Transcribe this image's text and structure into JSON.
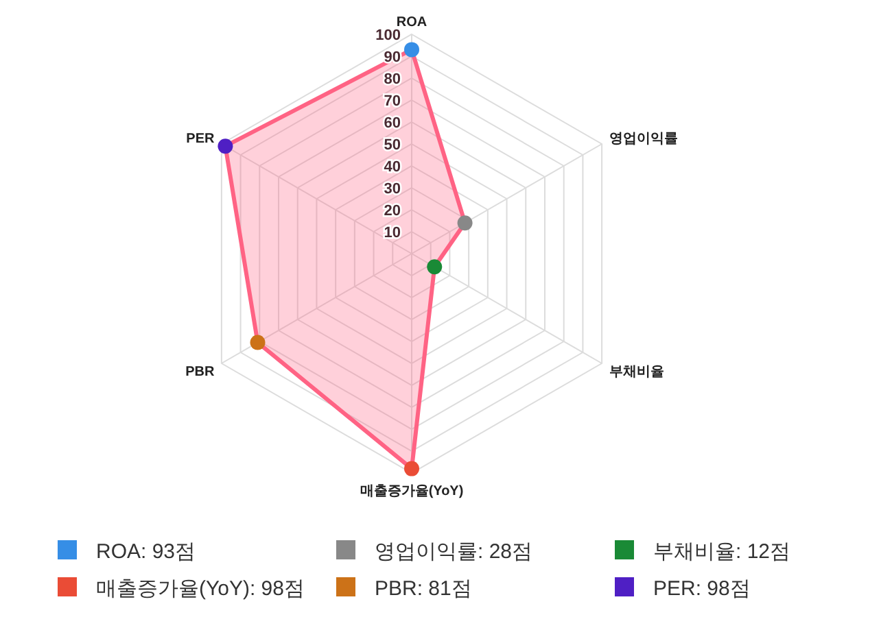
{
  "chart_data": {
    "type": "radar",
    "categories": [
      "ROA",
      "영업이익률",
      "부채비율",
      "매출증가율(YoY)",
      "PBR",
      "PER"
    ],
    "series": [
      {
        "color": "#ff6384",
        "values": [
          93,
          28,
          12,
          98,
          81,
          98
        ],
        "colors": [
          "#368ee6",
          "#888888",
          "#1a8a36",
          "#ea4c36",
          "#cc7218",
          "#4f1fc4"
        ]
      }
    ],
    "ylim": [
      0,
      100
    ],
    "yticks": [
      10,
      20,
      30,
      40,
      50,
      60,
      70,
      80,
      90,
      100
    ],
    "grid": true,
    "marker": "circle",
    "annotations": [
      "ROA: 93점",
      "영업이익률: 28점",
      "부채비율: 12점",
      "매출증가율(YoY): 98점",
      "PBR: 81점",
      "PER: 98점"
    ]
  }
}
